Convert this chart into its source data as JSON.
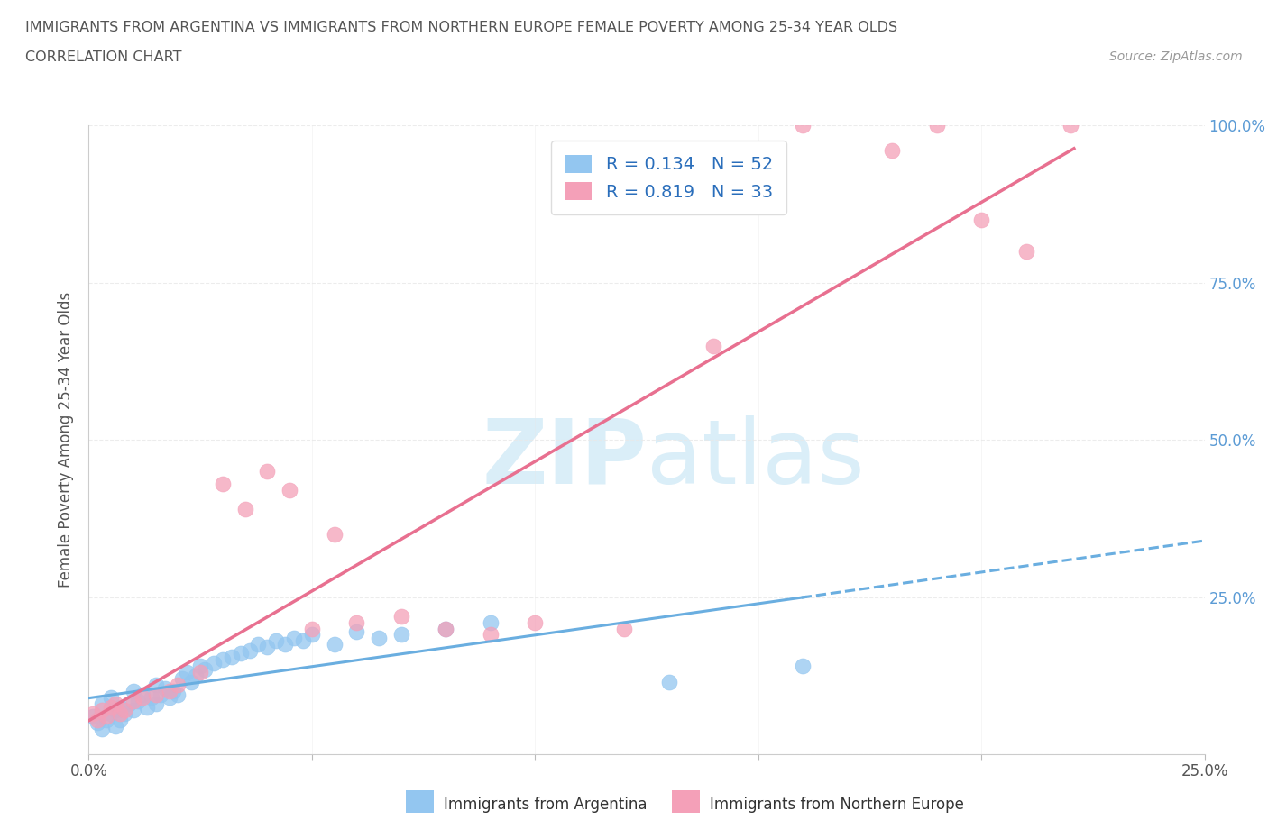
{
  "title_line1": "IMMIGRANTS FROM ARGENTINA VS IMMIGRANTS FROM NORTHERN EUROPE FEMALE POVERTY AMONG 25-34 YEAR OLDS",
  "title_line2": "CORRELATION CHART",
  "source": "Source: ZipAtlas.com",
  "ylabel": "Female Poverty Among 25-34 Year Olds",
  "xlim": [
    0.0,
    0.25
  ],
  "ylim": [
    0.0,
    1.0
  ],
  "xticks": [
    0.0,
    0.05,
    0.1,
    0.15,
    0.2,
    0.25
  ],
  "yticks": [
    0.0,
    0.25,
    0.5,
    0.75,
    1.0
  ],
  "argentina_color": "#93c6f0",
  "northern_europe_color": "#f4a0b8",
  "argentina_line_color": "#6aaee0",
  "northern_europe_line_color": "#e87090",
  "R_argentina": 0.134,
  "N_argentina": 52,
  "R_northern_europe": 0.819,
  "N_northern_europe": 33,
  "legend_label_argentina": "Immigrants from Argentina",
  "legend_label_northern_europe": "Immigrants from Northern Europe",
  "argentina_x": [
    0.001,
    0.002,
    0.003,
    0.003,
    0.004,
    0.005,
    0.005,
    0.006,
    0.006,
    0.007,
    0.007,
    0.008,
    0.009,
    0.01,
    0.01,
    0.011,
    0.012,
    0.013,
    0.014,
    0.015,
    0.015,
    0.016,
    0.017,
    0.018,
    0.019,
    0.02,
    0.021,
    0.022,
    0.023,
    0.024,
    0.025,
    0.026,
    0.028,
    0.03,
    0.032,
    0.034,
    0.036,
    0.038,
    0.04,
    0.042,
    0.044,
    0.046,
    0.048,
    0.05,
    0.055,
    0.06,
    0.065,
    0.07,
    0.08,
    0.09,
    0.13,
    0.16
  ],
  "argentina_y": [
    0.06,
    0.05,
    0.04,
    0.08,
    0.055,
    0.065,
    0.09,
    0.045,
    0.07,
    0.055,
    0.075,
    0.065,
    0.08,
    0.07,
    0.1,
    0.085,
    0.095,
    0.075,
    0.09,
    0.08,
    0.11,
    0.095,
    0.105,
    0.09,
    0.1,
    0.095,
    0.12,
    0.13,
    0.115,
    0.125,
    0.14,
    0.135,
    0.145,
    0.15,
    0.155,
    0.16,
    0.165,
    0.175,
    0.17,
    0.18,
    0.175,
    0.185,
    0.18,
    0.19,
    0.175,
    0.195,
    0.185,
    0.19,
    0.2,
    0.21,
    0.115,
    0.14
  ],
  "northern_europe_x": [
    0.001,
    0.002,
    0.003,
    0.004,
    0.005,
    0.006,
    0.007,
    0.008,
    0.01,
    0.012,
    0.015,
    0.018,
    0.02,
    0.025,
    0.03,
    0.035,
    0.04,
    0.045,
    0.05,
    0.055,
    0.06,
    0.07,
    0.08,
    0.09,
    0.1,
    0.12,
    0.14,
    0.16,
    0.18,
    0.19,
    0.2,
    0.21,
    0.22
  ],
  "northern_europe_y": [
    0.065,
    0.055,
    0.07,
    0.06,
    0.075,
    0.08,
    0.065,
    0.07,
    0.085,
    0.09,
    0.095,
    0.1,
    0.11,
    0.13,
    0.43,
    0.39,
    0.45,
    0.42,
    0.2,
    0.35,
    0.21,
    0.22,
    0.2,
    0.19,
    0.21,
    0.2,
    0.65,
    1.0,
    0.96,
    1.0,
    0.85,
    0.8,
    1.0
  ],
  "background_color": "#ffffff",
  "grid_color": "#e8e8e8",
  "text_color": "#555555",
  "axis_label_color": "#5b9bd5",
  "watermark_color": "#daeef8"
}
